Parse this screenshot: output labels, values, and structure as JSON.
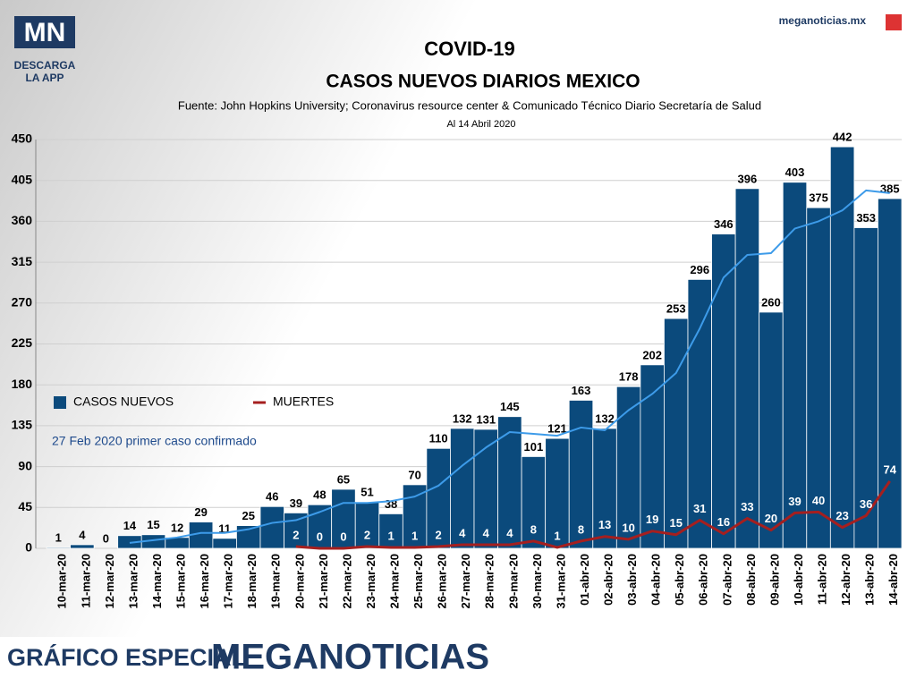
{
  "header": {
    "logo": "MN",
    "logo_caption": [
      "DESCARGA",
      "LA APP"
    ],
    "site": "meganoticias.mx"
  },
  "chart_data": {
    "type": "bar",
    "title": "COVID-19",
    "subtitle": "CASOS NUEVOS DIARIOS MEXICO",
    "source": "Fuente: John Hopkins University; Coronavirus resource center & Comunicado Técnico Diario Secretaría de Salud",
    "date_note": "Al 14 Abril 2020",
    "annotation": "27 Feb 2020 primer caso confirmado",
    "categories": [
      "10-mar-20",
      "11-mar-20",
      "12-mar-20",
      "13-mar-20",
      "14-mar-20",
      "15-mar-20",
      "16-mar-20",
      "17-mar-20",
      "18-mar-20",
      "19-mar-20",
      "20-mar-20",
      "21-mar-20",
      "22-mar-20",
      "23-mar-20",
      "24-mar-20",
      "25-mar-20",
      "26-mar-20",
      "27-mar-20",
      "28-mar-20",
      "29-mar-20",
      "30-mar-20",
      "31-mar-20",
      "01-abr-20",
      "02-abr-20",
      "03-abr-20",
      "04-abr-20",
      "05-abr-20",
      "06-abr-20",
      "07-abr-20",
      "08-abr-20",
      "09-abr-20",
      "10-abr-20",
      "11-abr-20",
      "12-abr-20",
      "13-abr-20",
      "14-abr-20"
    ],
    "series": [
      {
        "name": "CASOS NUEVOS",
        "color": "#0b4a7c",
        "kind": "bar",
        "values": [
          1,
          4,
          0,
          14,
          15,
          12,
          29,
          11,
          25,
          46,
          39,
          48,
          65,
          51,
          38,
          70,
          110,
          132,
          131,
          145,
          101,
          121,
          163,
          132,
          178,
          202,
          253,
          296,
          346,
          396,
          260,
          403,
          375,
          442,
          353,
          385
        ]
      },
      {
        "name": "MUERTES",
        "color": "#a51f1f",
        "kind": "line",
        "values": [
          null,
          null,
          null,
          null,
          null,
          null,
          null,
          null,
          null,
          null,
          2,
          0,
          0,
          2,
          1,
          1,
          2,
          4,
          4,
          4,
          8,
          1,
          8,
          13,
          10,
          19,
          15,
          31,
          16,
          33,
          20,
          39,
          40,
          23,
          36,
          74
        ]
      }
    ],
    "trend": {
      "color": "#3d9be9",
      "values": [
        null,
        null,
        null,
        6,
        9,
        12,
        17,
        17,
        21,
        28,
        31,
        40,
        50,
        50,
        52,
        57,
        69,
        91,
        111,
        128,
        126,
        124,
        133,
        130,
        152,
        170,
        193,
        242,
        298,
        323,
        325,
        352,
        360,
        372,
        394,
        391
      ]
    },
    "ylim": [
      0,
      450
    ],
    "yticks": [
      0,
      45,
      90,
      135,
      180,
      225,
      270,
      315,
      360,
      405,
      450
    ],
    "grid": true
  },
  "footer": {
    "left": "GRÁFICO ESPECIAL",
    "right": "MEGANOTICIAS"
  }
}
